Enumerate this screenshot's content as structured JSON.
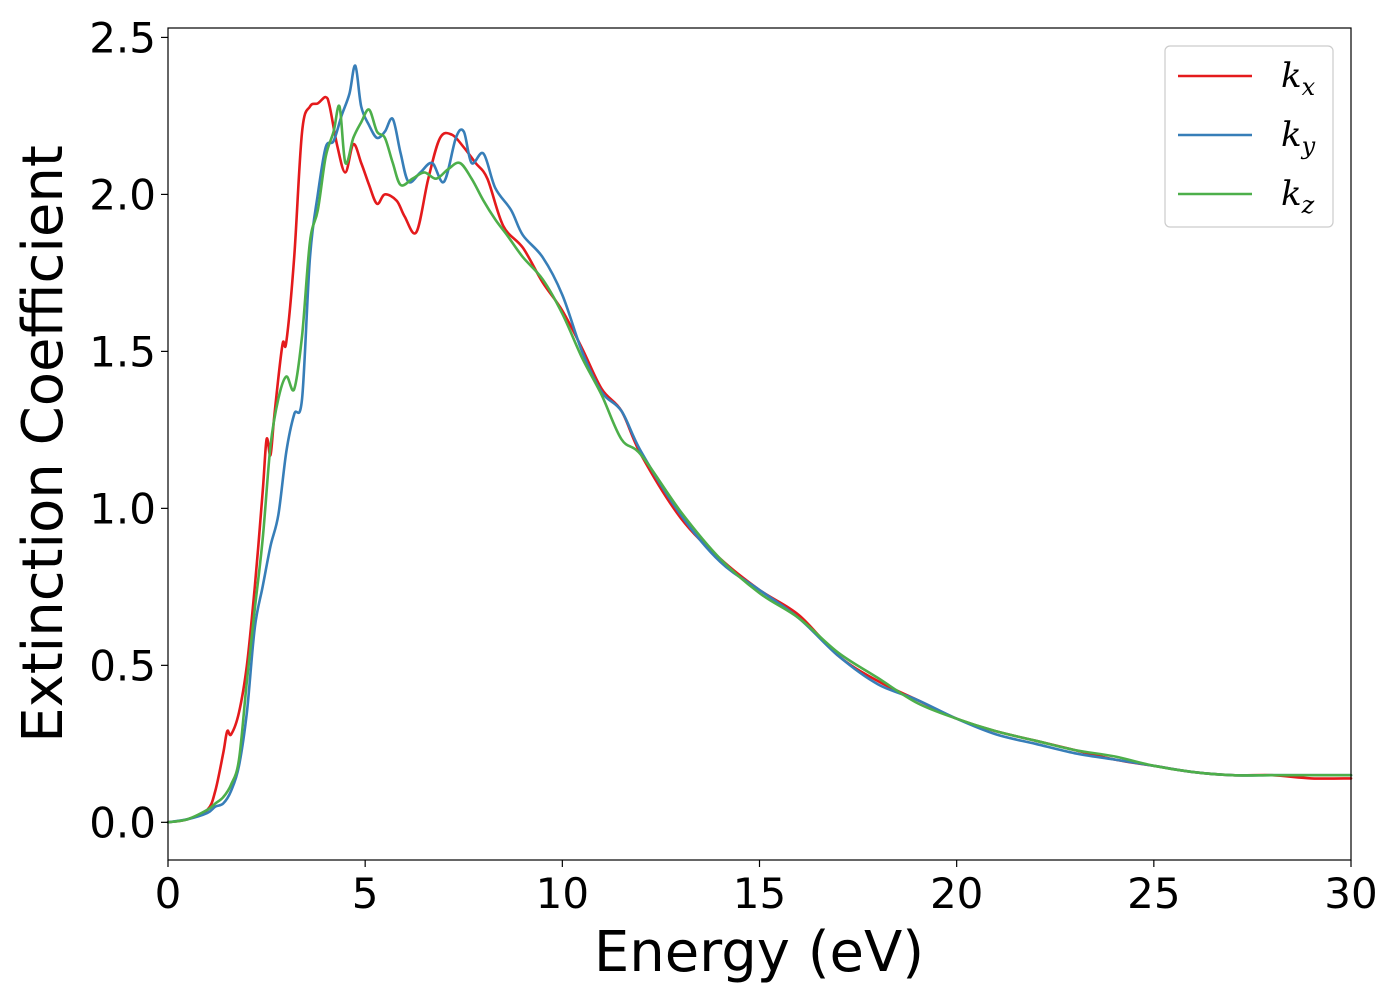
{
  "chart_data": {
    "type": "line",
    "xlabel": "Energy (eV)",
    "ylabel": "Extinction Coefficient",
    "xlim": [
      0,
      30
    ],
    "ylim": [
      -0.12,
      2.53
    ],
    "xticks": [
      0,
      5,
      10,
      15,
      20,
      25,
      30
    ],
    "xtick_labels": [
      "0",
      "5",
      "10",
      "15",
      "20",
      "25",
      "30"
    ],
    "yticks": [
      0.0,
      0.5,
      1.0,
      1.5,
      2.0,
      2.5
    ],
    "ytick_labels": [
      "0.0",
      "0.5",
      "1.0",
      "1.5",
      "2.0",
      "2.5"
    ],
    "grid": false,
    "legend_position": "top-right",
    "series": [
      {
        "name": "k",
        "subscript": "x",
        "color": "#e41a1c",
        "x": [
          0,
          0.5,
          1.0,
          1.2,
          1.4,
          1.5,
          1.6,
          1.8,
          2.0,
          2.2,
          2.4,
          2.5,
          2.6,
          2.7,
          2.9,
          3.0,
          3.2,
          3.4,
          3.6,
          3.8,
          4.0,
          4.1,
          4.3,
          4.5,
          4.7,
          4.9,
          5.1,
          5.3,
          5.5,
          5.8,
          6.0,
          6.3,
          6.6,
          6.9,
          7.2,
          7.5,
          7.8,
          8.1,
          8.5,
          9.0,
          9.5,
          10.0,
          10.5,
          11.0,
          11.5,
          12.0,
          13.0,
          14.0,
          15.0,
          16.0,
          17.0,
          18.0,
          19.0,
          20.0,
          21.0,
          22.0,
          23.0,
          24.0,
          25.0,
          26.0,
          27.0,
          28.0,
          29.0,
          30.0
        ],
        "values": [
          0.0,
          0.01,
          0.04,
          0.1,
          0.22,
          0.29,
          0.28,
          0.35,
          0.5,
          0.75,
          1.05,
          1.22,
          1.17,
          1.3,
          1.52,
          1.53,
          1.8,
          2.2,
          2.28,
          2.29,
          2.31,
          2.28,
          2.15,
          2.07,
          2.16,
          2.1,
          2.03,
          1.97,
          2.0,
          1.98,
          1.93,
          1.88,
          2.05,
          2.18,
          2.19,
          2.15,
          2.1,
          2.05,
          1.9,
          1.83,
          1.72,
          1.63,
          1.51,
          1.38,
          1.31,
          1.17,
          0.97,
          0.84,
          0.74,
          0.66,
          0.53,
          0.45,
          0.39,
          0.33,
          0.29,
          0.26,
          0.23,
          0.2,
          0.18,
          0.16,
          0.15,
          0.15,
          0.14,
          0.14
        ]
      },
      {
        "name": "k",
        "subscript": "y",
        "color": "#377eb8",
        "x": [
          0,
          0.5,
          1.0,
          1.2,
          1.4,
          1.6,
          1.8,
          2.0,
          2.2,
          2.4,
          2.6,
          2.8,
          3.0,
          3.2,
          3.4,
          3.6,
          3.8,
          4.0,
          4.2,
          4.4,
          4.6,
          4.75,
          4.9,
          5.1,
          5.3,
          5.5,
          5.7,
          5.9,
          6.1,
          6.4,
          6.7,
          7.0,
          7.3,
          7.5,
          7.7,
          8.0,
          8.3,
          8.7,
          9.0,
          9.5,
          10.0,
          10.5,
          11.0,
          11.5,
          12.0,
          13.0,
          14.0,
          15.0,
          16.0,
          17.0,
          18.0,
          19.0,
          20.0,
          21.0,
          22.0,
          23.0,
          24.0,
          25.0,
          26.0,
          27.0,
          28.0,
          29.0,
          30.0
        ],
        "values": [
          0.0,
          0.01,
          0.03,
          0.05,
          0.06,
          0.1,
          0.18,
          0.35,
          0.62,
          0.75,
          0.88,
          0.98,
          1.18,
          1.3,
          1.35,
          1.8,
          2.0,
          2.15,
          2.17,
          2.25,
          2.32,
          2.41,
          2.28,
          2.22,
          2.18,
          2.2,
          2.24,
          2.13,
          2.04,
          2.07,
          2.1,
          2.04,
          2.18,
          2.2,
          2.1,
          2.13,
          2.02,
          1.95,
          1.87,
          1.8,
          1.68,
          1.5,
          1.37,
          1.31,
          1.18,
          0.98,
          0.83,
          0.74,
          0.65,
          0.53,
          0.44,
          0.39,
          0.33,
          0.28,
          0.25,
          0.22,
          0.2,
          0.18,
          0.16,
          0.15,
          0.15,
          0.15,
          0.15
        ]
      },
      {
        "name": "k",
        "subscript": "z",
        "color": "#4daf4a",
        "x": [
          0,
          0.5,
          1.0,
          1.2,
          1.4,
          1.6,
          1.8,
          2.0,
          2.2,
          2.4,
          2.6,
          2.8,
          3.0,
          3.2,
          3.4,
          3.6,
          3.8,
          4.0,
          4.2,
          4.35,
          4.5,
          4.7,
          4.9,
          5.1,
          5.3,
          5.5,
          5.7,
          5.9,
          6.2,
          6.5,
          6.8,
          7.1,
          7.4,
          7.7,
          8.0,
          8.3,
          8.6,
          9.0,
          9.5,
          10.0,
          10.5,
          11.0,
          11.5,
          12.0,
          13.0,
          14.0,
          15.0,
          16.0,
          17.0,
          18.0,
          19.0,
          20.0,
          21.0,
          22.0,
          23.0,
          24.0,
          25.0,
          26.0,
          27.0,
          28.0,
          29.0,
          30.0
        ],
        "values": [
          0.0,
          0.01,
          0.04,
          0.06,
          0.08,
          0.12,
          0.2,
          0.45,
          0.68,
          0.9,
          1.2,
          1.35,
          1.42,
          1.38,
          1.55,
          1.85,
          1.95,
          2.12,
          2.2,
          2.28,
          2.1,
          2.18,
          2.23,
          2.27,
          2.2,
          2.18,
          2.1,
          2.03,
          2.05,
          2.07,
          2.05,
          2.08,
          2.1,
          2.05,
          1.98,
          1.92,
          1.87,
          1.8,
          1.73,
          1.62,
          1.48,
          1.36,
          1.22,
          1.17,
          0.99,
          0.84,
          0.73,
          0.65,
          0.54,
          0.46,
          0.38,
          0.33,
          0.29,
          0.26,
          0.23,
          0.21,
          0.18,
          0.16,
          0.15,
          0.15,
          0.15,
          0.15
        ]
      }
    ]
  }
}
